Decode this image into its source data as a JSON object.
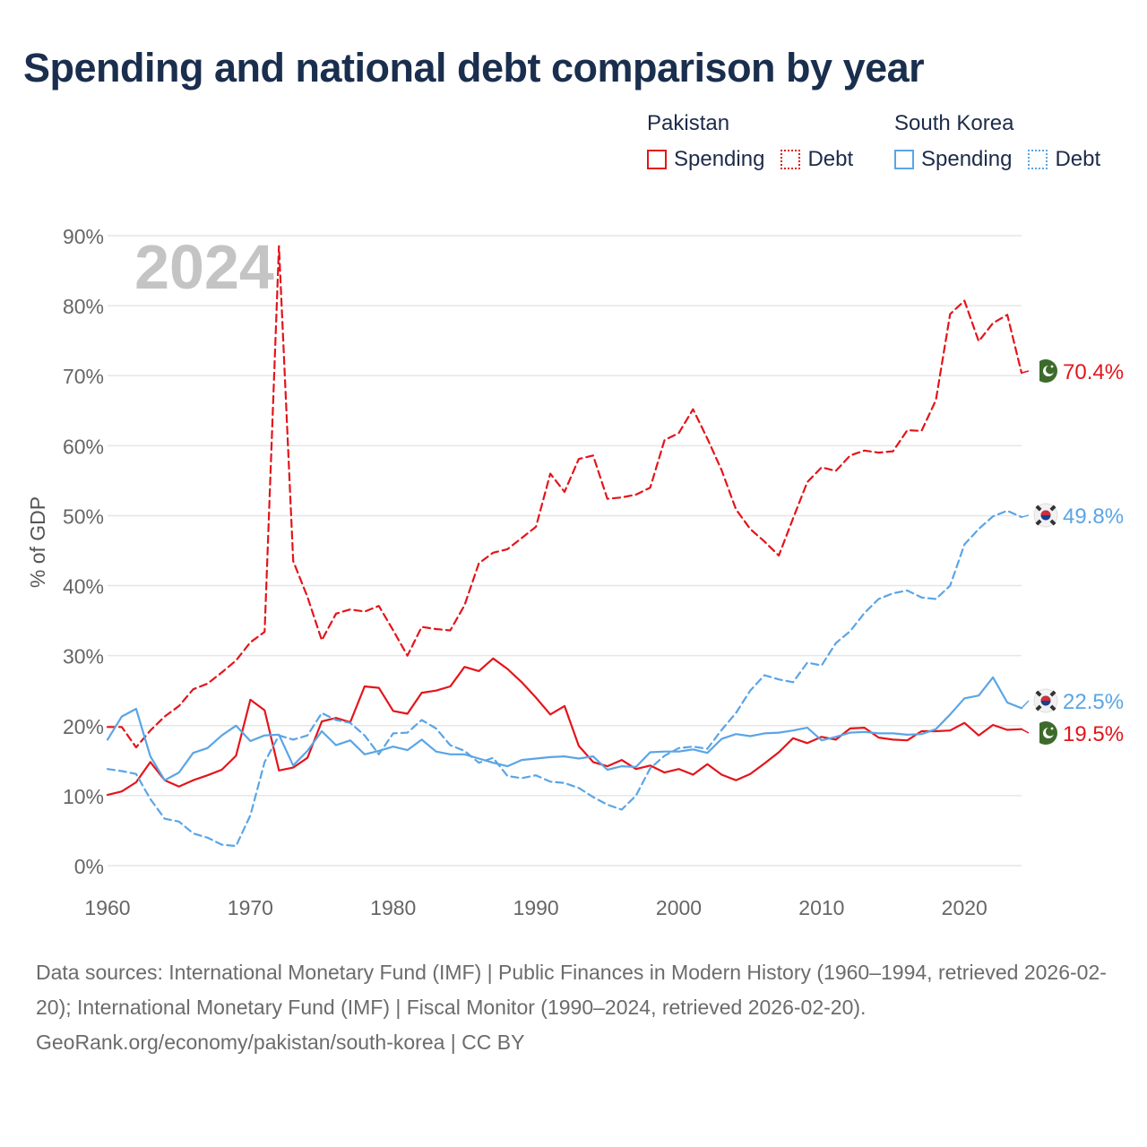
{
  "title": "Spending and national debt comparison by year",
  "legend": {
    "groups": [
      {
        "country": "Pakistan",
        "color": "#e3151b",
        "items": [
          {
            "label": "Spending",
            "style": "solid"
          },
          {
            "label": "Debt",
            "style": "dotted"
          }
        ]
      },
      {
        "country": "South Korea",
        "color": "#5aa5e6",
        "items": [
          {
            "label": "Spending",
            "style": "solid"
          },
          {
            "label": "Debt",
            "style": "dotted"
          }
        ]
      }
    ]
  },
  "chart_data": {
    "type": "line",
    "title": "Spending and national debt comparison by year",
    "xlabel": "",
    "ylabel": "% of GDP",
    "xlim": [
      1960,
      2024
    ],
    "ylim": [
      0,
      90
    ],
    "x_ticks": [
      1960,
      1970,
      1980,
      1990,
      2000,
      2010,
      2020
    ],
    "x_tick_labels": [
      "1960",
      "1970",
      "1980",
      "1990",
      "2000",
      "2010",
      "2020"
    ],
    "y_ticks": [
      0,
      10,
      20,
      30,
      40,
      50,
      60,
      70,
      80,
      90
    ],
    "y_tick_labels": [
      "0%",
      "10%",
      "20%",
      "30%",
      "40%",
      "50%",
      "60%",
      "70%",
      "80%",
      "90%"
    ],
    "year_label": "2024",
    "grid": true,
    "x": [
      1960,
      1961,
      1962,
      1963,
      1964,
      1965,
      1966,
      1967,
      1968,
      1969,
      1970,
      1971,
      1972,
      1973,
      1974,
      1975,
      1976,
      1977,
      1978,
      1979,
      1980,
      1981,
      1982,
      1983,
      1984,
      1985,
      1986,
      1987,
      1988,
      1989,
      1990,
      1991,
      1992,
      1993,
      1994,
      1995,
      1996,
      1997,
      1998,
      1999,
      2000,
      2001,
      2002,
      2003,
      2004,
      2005,
      2006,
      2007,
      2008,
      2009,
      2010,
      2011,
      2012,
      2013,
      2014,
      2015,
      2016,
      2017,
      2018,
      2019,
      2020,
      2021,
      2022,
      2023,
      2024
    ],
    "series": [
      {
        "name": "Pakistan Spending",
        "country": "Pakistan",
        "kind": "spending",
        "color": "#e3151b",
        "dash": "solid",
        "end_label": "19.5%",
        "values": [
          10.1,
          10.6,
          11.9,
          14.8,
          12.2,
          11.3,
          12.2,
          12.9,
          13.7,
          15.7,
          23.7,
          22.2,
          13.6,
          14.0,
          15.4,
          20.6,
          21.1,
          20.5,
          25.6,
          25.4,
          22.1,
          21.7,
          24.7,
          25.0,
          25.6,
          28.4,
          27.8,
          29.6,
          28.1,
          26.2,
          24.0,
          21.6,
          22.8,
          17.1,
          14.8,
          14.2,
          15.1,
          13.8,
          14.3,
          13.3,
          13.8,
          13.0,
          14.5,
          13.0,
          12.2,
          13.1,
          14.6,
          16.2,
          18.2,
          17.5,
          18.4,
          18.0,
          19.6,
          19.7,
          18.3,
          18.0,
          17.9,
          19.2,
          19.2,
          19.3,
          20.4,
          18.6,
          20.1,
          19.4,
          19.5
        ]
      },
      {
        "name": "Pakistan Debt",
        "country": "Pakistan",
        "kind": "debt",
        "color": "#e3151b",
        "dash": "dashed",
        "end_label": "70.4%",
        "values": [
          19.8,
          19.8,
          16.9,
          19.3,
          21.3,
          22.8,
          25.2,
          26.0,
          27.6,
          29.3,
          31.9,
          33.4,
          88.5,
          43.5,
          38.4,
          32.2,
          36.0,
          36.6,
          36.3,
          37.1,
          33.6,
          30.0,
          34.1,
          33.8,
          33.6,
          37.2,
          43.2,
          44.7,
          45.2,
          46.8,
          48.4,
          56.0,
          53.4,
          58.1,
          58.6,
          52.4,
          52.6,
          53.0,
          54.0,
          60.8,
          61.8,
          65.2,
          61.0,
          56.5,
          50.9,
          48.1,
          46.3,
          44.3,
          49.6,
          54.8,
          56.9,
          56.4,
          58.6,
          59.3,
          59.0,
          59.2,
          62.2,
          62.1,
          66.5,
          78.8,
          80.7,
          74.9,
          77.5,
          78.7,
          70.4
        ]
      },
      {
        "name": "South Korea Spending",
        "country": "South Korea",
        "kind": "spending",
        "color": "#5aa5e6",
        "dash": "solid",
        "end_label": "22.5%",
        "values": [
          18.0,
          21.3,
          22.4,
          15.6,
          12.2,
          13.3,
          16.1,
          16.8,
          18.6,
          20.0,
          17.8,
          18.6,
          18.7,
          14.3,
          16.4,
          19.2,
          17.2,
          17.9,
          15.9,
          16.4,
          17.0,
          16.5,
          18.0,
          16.3,
          15.9,
          15.9,
          15.3,
          14.7,
          14.2,
          15.1,
          15.3,
          15.5,
          15.6,
          15.3,
          15.6,
          13.7,
          14.2,
          14.1,
          16.2,
          16.3,
          16.3,
          16.6,
          16.1,
          18.1,
          18.8,
          18.5,
          18.9,
          19.0,
          19.3,
          19.7,
          17.9,
          18.4,
          19.0,
          19.1,
          18.9,
          18.9,
          18.7,
          18.8,
          19.5,
          21.6,
          23.9,
          24.3,
          26.9,
          23.3,
          22.5
        ]
      },
      {
        "name": "South Korea Debt",
        "country": "South Korea",
        "kind": "debt",
        "color": "#5aa5e6",
        "dash": "dashed",
        "end_label": "49.8%",
        "values": [
          13.8,
          13.5,
          13.1,
          9.5,
          6.7,
          6.3,
          4.6,
          4.0,
          3.0,
          2.8,
          7.2,
          14.8,
          18.6,
          18.0,
          18.6,
          21.8,
          20.8,
          20.4,
          18.6,
          15.9,
          18.9,
          19.0,
          20.8,
          19.6,
          17.2,
          16.4,
          14.7,
          15.4,
          12.8,
          12.5,
          12.9,
          12.0,
          11.8,
          11.1,
          9.8,
          8.7,
          8.0,
          10.0,
          13.9,
          15.7,
          16.8,
          17.0,
          16.7,
          19.4,
          21.8,
          25.0,
          27.2,
          26.6,
          26.2,
          29.0,
          28.6,
          31.8,
          33.5,
          36.1,
          38.1,
          38.9,
          39.3,
          38.3,
          38.1,
          40.0,
          45.9,
          48.1,
          49.9,
          50.7,
          49.8
        ]
      }
    ]
  },
  "flags": {
    "pakistan": {
      "icon": "pakistan-flag-icon",
      "color": "#3d6b2c"
    },
    "south_korea": {
      "icon": "south-korea-flag-icon"
    }
  },
  "footer": {
    "sources": "Data sources: International Monetary Fund (IMF) | Public Finances in Modern History (1960–1994, retrieved 2026-02-20); International Monetary Fund (IMF) | Fiscal Monitor (1990–2024, retrieved 2026-02-20).",
    "credit": "GeoRank.org/economy/pakistan/south-korea | CC BY"
  }
}
